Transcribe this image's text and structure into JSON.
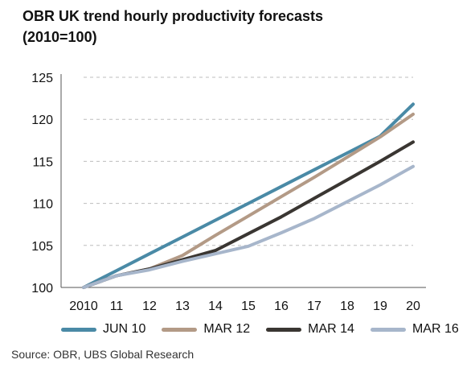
{
  "title": "OBR UK trend hourly productivity forecasts",
  "subtitle": "(2010=100)",
  "source": "Source: OBR, UBS Global Research",
  "chart_data": {
    "type": "line",
    "x": [
      "2010",
      "11",
      "12",
      "13",
      "14",
      "15",
      "16",
      "17",
      "18",
      "19",
      "20"
    ],
    "ylim": [
      100,
      125
    ],
    "yticks": [
      100,
      105,
      110,
      115,
      120,
      125
    ],
    "grid": "horizontal dashed",
    "legend_position": "bottom",
    "series": [
      {
        "name": "JUN 10",
        "color": "#4a8aa6",
        "values": [
          100,
          102,
          104,
          106,
          108,
          110,
          112,
          114,
          116,
          118,
          121.8
        ]
      },
      {
        "name": "MAR 12",
        "color": "#b39a86",
        "values": [
          100,
          101.4,
          102.2,
          103.8,
          106.2,
          108.5,
          110.8,
          113.1,
          115.5,
          117.9,
          120.6
        ]
      },
      {
        "name": "MAR 14",
        "color": "#3a3632",
        "values": [
          100,
          101.4,
          102.2,
          103.3,
          104.4,
          106.4,
          108.4,
          110.6,
          112.8,
          115,
          117.3
        ]
      },
      {
        "name": "MAR 16",
        "color": "#a7b6cb",
        "values": [
          100,
          101.4,
          102.1,
          103.1,
          104,
          104.9,
          106.5,
          108.2,
          110.2,
          112.2,
          114.4
        ]
      }
    ]
  }
}
